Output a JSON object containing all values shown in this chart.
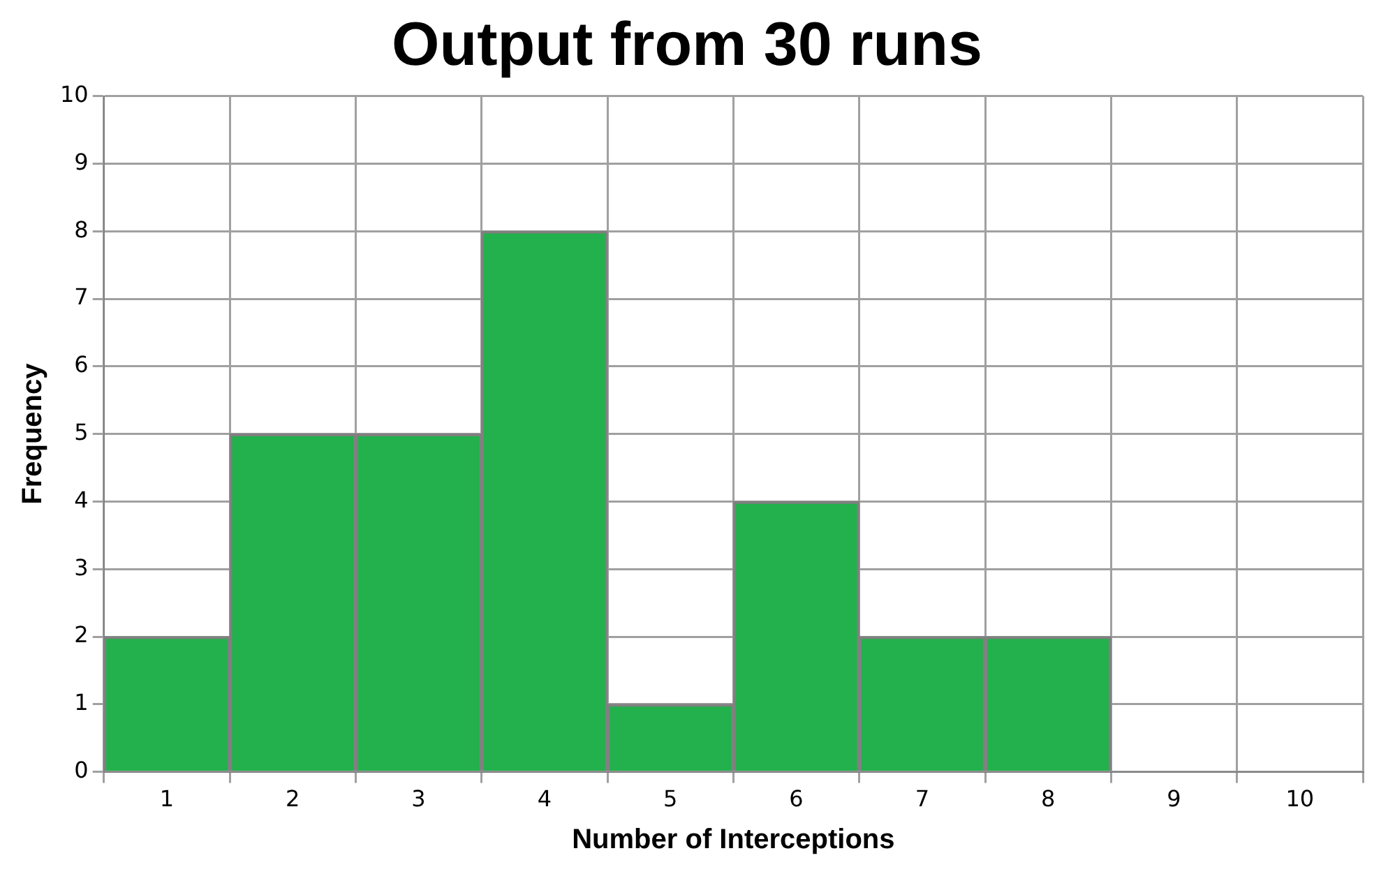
{
  "chart_data": {
    "type": "bar",
    "title": "Output from 30 runs",
    "xlabel": "Number of Interceptions",
    "ylabel": "Frequency",
    "categories": [
      "1",
      "2",
      "3",
      "4",
      "5",
      "6",
      "7",
      "8",
      "9",
      "10"
    ],
    "values": [
      2,
      5,
      5,
      8,
      1,
      4,
      2,
      2,
      0,
      0
    ],
    "color": "#22b14c",
    "ylim": [
      0,
      10
    ],
    "yticks": [
      0,
      1,
      2,
      3,
      4,
      5,
      6,
      7,
      8,
      9,
      10
    ],
    "grid": true
  }
}
